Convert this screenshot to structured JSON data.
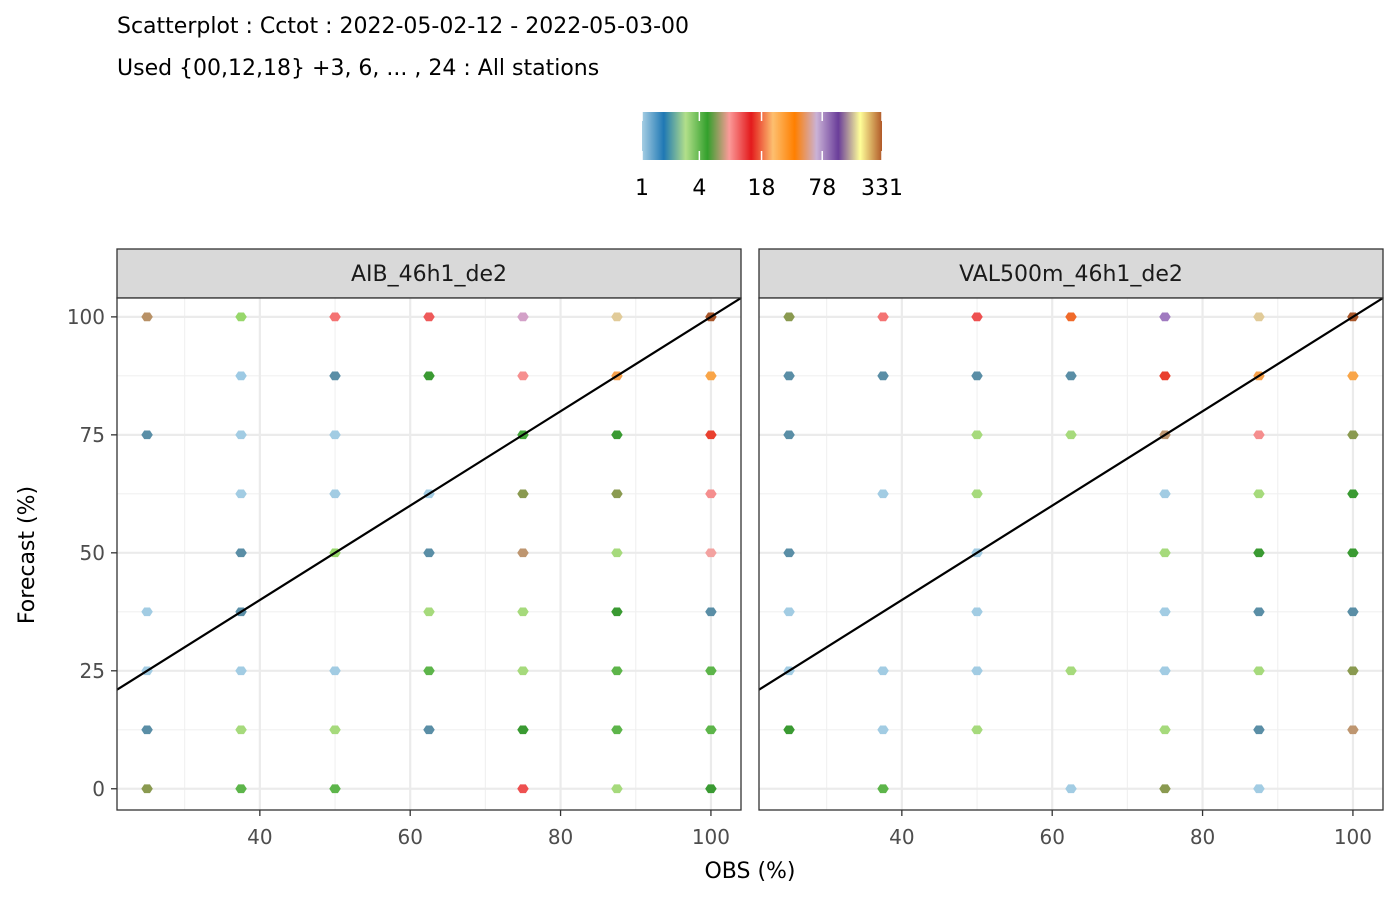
{
  "chart_data": {
    "type": "scatter",
    "title": "Scatterplot : Cctot : 2022-05-02-12 - 2022-05-03-00",
    "subtitle": "Used {00,12,18} +3, 6, ... , 24 : All stations",
    "xlabel": "OBS (%)",
    "ylabel": "Forecast (%)",
    "xlim": [
      21,
      104
    ],
    "ylim": [
      -4.5,
      104
    ],
    "x_ticks": [
      "40",
      "60",
      "80",
      "100"
    ],
    "y_ticks": [
      "0",
      "25",
      "50",
      "75",
      "100"
    ],
    "grid": true,
    "legend": {
      "position": "top",
      "labels": [
        "1",
        "4",
        "18",
        "78",
        "331"
      ],
      "colors": [
        "#A6CEE3",
        "#1F78B4",
        "#B2DF8A",
        "#33A02C",
        "#FB9A99",
        "#E31A1C",
        "#FDBF6F",
        "#FF7F00",
        "#CAB2D6",
        "#6A3D9A",
        "#FFFF99",
        "#B15928"
      ]
    },
    "reference_line": {
      "intercept": 0,
      "slope": 1
    },
    "panels": [
      {
        "name": "AIB_46h1_de2",
        "points": [
          {
            "x": 25,
            "y": 100,
            "color": "#B89166"
          },
          {
            "x": 37.5,
            "y": 100,
            "color": "#97D76B"
          },
          {
            "x": 50,
            "y": 100,
            "color": "#F47373"
          },
          {
            "x": 62.5,
            "y": 100,
            "color": "#EE5A5A"
          },
          {
            "x": 75,
            "y": 100,
            "color": "#D3A1C8"
          },
          {
            "x": 87.5,
            "y": 100,
            "color": "#E1CB99"
          },
          {
            "x": 100,
            "y": 100,
            "color": "#A8562A"
          },
          {
            "x": 37.5,
            "y": 87.5,
            "color": "#9DCAE4"
          },
          {
            "x": 50,
            "y": 87.5,
            "color": "#5A8EA6"
          },
          {
            "x": 62.5,
            "y": 87.5,
            "color": "#3A9A32"
          },
          {
            "x": 75,
            "y": 87.5,
            "color": "#F68F8F"
          },
          {
            "x": 87.5,
            "y": 87.5,
            "color": "#F7A04A"
          },
          {
            "x": 100,
            "y": 87.5,
            "color": "#F9A548"
          },
          {
            "x": 25,
            "y": 75,
            "color": "#5A8EA6"
          },
          {
            "x": 37.5,
            "y": 75,
            "color": "#A2CCE3"
          },
          {
            "x": 50,
            "y": 75,
            "color": "#A2CCE3"
          },
          {
            "x": 75,
            "y": 75,
            "color": "#43A63A"
          },
          {
            "x": 87.5,
            "y": 75,
            "color": "#3A9A32"
          },
          {
            "x": 100,
            "y": 75,
            "color": "#E9402F"
          },
          {
            "x": 37.5,
            "y": 62.5,
            "color": "#A2CCE3"
          },
          {
            "x": 50,
            "y": 62.5,
            "color": "#A2CCE3"
          },
          {
            "x": 62.5,
            "y": 62.5,
            "color": "#A2CCE3"
          },
          {
            "x": 75,
            "y": 62.5,
            "color": "#8A9A50"
          },
          {
            "x": 87.5,
            "y": 62.5,
            "color": "#8A9A50"
          },
          {
            "x": 100,
            "y": 62.5,
            "color": "#F58E8E"
          },
          {
            "x": 37.5,
            "y": 50,
            "color": "#5A8EA6"
          },
          {
            "x": 50,
            "y": 50,
            "color": "#97D76B"
          },
          {
            "x": 62.5,
            "y": 50,
            "color": "#5A8EA6"
          },
          {
            "x": 75,
            "y": 50,
            "color": "#BE9670"
          },
          {
            "x": 87.5,
            "y": 50,
            "color": "#A6DA7C"
          },
          {
            "x": 100,
            "y": 50,
            "color": "#F3A2A0"
          },
          {
            "x": 25,
            "y": 37.5,
            "color": "#A2CCE3"
          },
          {
            "x": 37.5,
            "y": 37.5,
            "color": "#5A8EA6"
          },
          {
            "x": 62.5,
            "y": 37.5,
            "color": "#A6DA7C"
          },
          {
            "x": 75,
            "y": 37.5,
            "color": "#A6DA7C"
          },
          {
            "x": 87.5,
            "y": 37.5,
            "color": "#3A9A32"
          },
          {
            "x": 100,
            "y": 37.5,
            "color": "#5A8EA6"
          },
          {
            "x": 25,
            "y": 25,
            "color": "#A2CCE3"
          },
          {
            "x": 37.5,
            "y": 25,
            "color": "#A2CCE3"
          },
          {
            "x": 50,
            "y": 25,
            "color": "#A2CCE3"
          },
          {
            "x": 62.5,
            "y": 25,
            "color": "#5DB54A"
          },
          {
            "x": 75,
            "y": 25,
            "color": "#A6DA7C"
          },
          {
            "x": 87.5,
            "y": 25,
            "color": "#5DB54A"
          },
          {
            "x": 100,
            "y": 25,
            "color": "#5DB54A"
          },
          {
            "x": 25,
            "y": 12.5,
            "color": "#5A8EA6"
          },
          {
            "x": 37.5,
            "y": 12.5,
            "color": "#A6DA7C"
          },
          {
            "x": 50,
            "y": 12.5,
            "color": "#A6DA7C"
          },
          {
            "x": 62.5,
            "y": 12.5,
            "color": "#5A8EA6"
          },
          {
            "x": 75,
            "y": 12.5,
            "color": "#3A9A32"
          },
          {
            "x": 87.5,
            "y": 12.5,
            "color": "#5DB54A"
          },
          {
            "x": 100,
            "y": 12.5,
            "color": "#5DB54A"
          },
          {
            "x": 25,
            "y": 0,
            "color": "#8A9A50"
          },
          {
            "x": 37.5,
            "y": 0,
            "color": "#5DB54A"
          },
          {
            "x": 50,
            "y": 0,
            "color": "#5DB54A"
          },
          {
            "x": 75,
            "y": 0,
            "color": "#EE5050"
          },
          {
            "x": 87.5,
            "y": 0,
            "color": "#A6DA7C"
          },
          {
            "x": 100,
            "y": 0,
            "color": "#3A9A32"
          }
        ]
      },
      {
        "name": "VAL500m_46h1_de2",
        "points": [
          {
            "x": 25,
            "y": 100,
            "color": "#8A9A50"
          },
          {
            "x": 37.5,
            "y": 100,
            "color": "#F47373"
          },
          {
            "x": 50,
            "y": 100,
            "color": "#EE5050"
          },
          {
            "x": 62.5,
            "y": 100,
            "color": "#F06A2A"
          },
          {
            "x": 75,
            "y": 100,
            "color": "#A07AC0"
          },
          {
            "x": 87.5,
            "y": 100,
            "color": "#E1CB99"
          },
          {
            "x": 100,
            "y": 100,
            "color": "#A8562A"
          },
          {
            "x": 25,
            "y": 87.5,
            "color": "#5A8EA6"
          },
          {
            "x": 37.5,
            "y": 87.5,
            "color": "#5A8EA6"
          },
          {
            "x": 50,
            "y": 87.5,
            "color": "#5A8EA6"
          },
          {
            "x": 62.5,
            "y": 87.5,
            "color": "#5A8EA6"
          },
          {
            "x": 75,
            "y": 87.5,
            "color": "#E9402F"
          },
          {
            "x": 87.5,
            "y": 87.5,
            "color": "#F7A04A"
          },
          {
            "x": 100,
            "y": 87.5,
            "color": "#F9A548"
          },
          {
            "x": 25,
            "y": 75,
            "color": "#5A8EA6"
          },
          {
            "x": 50,
            "y": 75,
            "color": "#A6DA7C"
          },
          {
            "x": 62.5,
            "y": 75,
            "color": "#A6DA7C"
          },
          {
            "x": 75,
            "y": 75,
            "color": "#BE9670"
          },
          {
            "x": 87.5,
            "y": 75,
            "color": "#F58E8E"
          },
          {
            "x": 100,
            "y": 75,
            "color": "#8A9A50"
          },
          {
            "x": 37.5,
            "y": 62.5,
            "color": "#A2CCE3"
          },
          {
            "x": 50,
            "y": 62.5,
            "color": "#A6DA7C"
          },
          {
            "x": 75,
            "y": 62.5,
            "color": "#A2CCE3"
          },
          {
            "x": 87.5,
            "y": 62.5,
            "color": "#A6DA7C"
          },
          {
            "x": 100,
            "y": 62.5,
            "color": "#3A9A32"
          },
          {
            "x": 25,
            "y": 50,
            "color": "#5A8EA6"
          },
          {
            "x": 50,
            "y": 50,
            "color": "#A2CCE3"
          },
          {
            "x": 75,
            "y": 50,
            "color": "#A6DA7C"
          },
          {
            "x": 87.5,
            "y": 50,
            "color": "#3A9A32"
          },
          {
            "x": 100,
            "y": 50,
            "color": "#3A9A32"
          },
          {
            "x": 25,
            "y": 37.5,
            "color": "#A2CCE3"
          },
          {
            "x": 50,
            "y": 37.5,
            "color": "#A2CCE3"
          },
          {
            "x": 75,
            "y": 37.5,
            "color": "#A2CCE3"
          },
          {
            "x": 87.5,
            "y": 37.5,
            "color": "#5A8EA6"
          },
          {
            "x": 100,
            "y": 37.5,
            "color": "#5A8EA6"
          },
          {
            "x": 25,
            "y": 25,
            "color": "#A2CCE3"
          },
          {
            "x": 37.5,
            "y": 25,
            "color": "#A2CCE3"
          },
          {
            "x": 50,
            "y": 25,
            "color": "#A2CCE3"
          },
          {
            "x": 62.5,
            "y": 25,
            "color": "#A6DA7C"
          },
          {
            "x": 75,
            "y": 25,
            "color": "#A2CCE3"
          },
          {
            "x": 87.5,
            "y": 25,
            "color": "#A6DA7C"
          },
          {
            "x": 100,
            "y": 25,
            "color": "#8A9A50"
          },
          {
            "x": 25,
            "y": 12.5,
            "color": "#3A9A32"
          },
          {
            "x": 37.5,
            "y": 12.5,
            "color": "#A2CCE3"
          },
          {
            "x": 50,
            "y": 12.5,
            "color": "#A6DA7C"
          },
          {
            "x": 75,
            "y": 12.5,
            "color": "#A6DA7C"
          },
          {
            "x": 87.5,
            "y": 12.5,
            "color": "#5A8EA6"
          },
          {
            "x": 100,
            "y": 12.5,
            "color": "#BE9670"
          },
          {
            "x": 37.5,
            "y": 0,
            "color": "#5DB54A"
          },
          {
            "x": 62.5,
            "y": 0,
            "color": "#A2CCE3"
          },
          {
            "x": 75,
            "y": 0,
            "color": "#8A9A50"
          },
          {
            "x": 87.5,
            "y": 0,
            "color": "#A2CCE3"
          }
        ]
      }
    ]
  }
}
